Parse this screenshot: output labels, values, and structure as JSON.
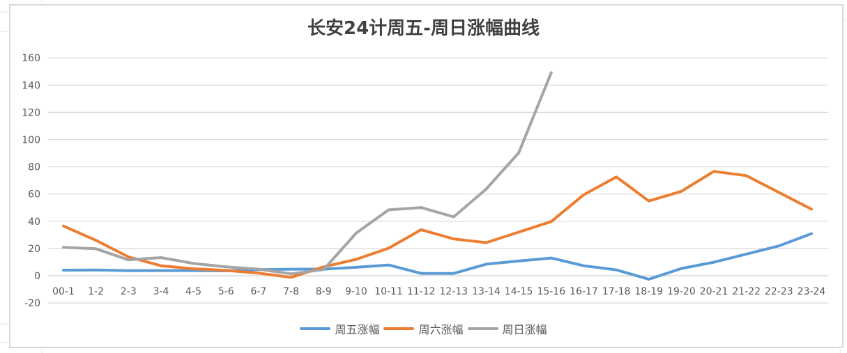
{
  "chart_data": {
    "type": "line",
    "title": "长安24计周五-周日涨幅曲线",
    "xlabel": "",
    "ylabel": "",
    "ylim": [
      -20,
      160
    ],
    "yticks": [
      -20,
      0,
      20,
      40,
      60,
      80,
      100,
      120,
      140,
      160
    ],
    "grid": true,
    "legend_position": "bottom",
    "categories": [
      "00-1",
      "1-2",
      "2-3",
      "3-4",
      "4-5",
      "5-6",
      "6-7",
      "7-8",
      "8-9",
      "9-10",
      "10-11",
      "11-12",
      "12-13",
      "13-14",
      "14-15",
      "15-16",
      "16-17",
      "17-18",
      "18-19",
      "19-20",
      "20-21",
      "21-22",
      "22-23",
      "23-24"
    ],
    "series": [
      {
        "name": "周五涨幅",
        "color": "#5b9bd5",
        "values": [
          4.1,
          4.2,
          3.7,
          3.8,
          3.8,
          3.6,
          4.5,
          4.8,
          4.8,
          6.2,
          7.9,
          1.7,
          1.7,
          8.5,
          10.8,
          13.0,
          7.3,
          4.3,
          -2.6,
          5.3,
          9.9,
          15.9,
          21.9,
          30.9
        ]
      },
      {
        "name": "周六涨幅",
        "color": "#ed7d31",
        "values": [
          36.5,
          26.0,
          13.8,
          7.3,
          5.1,
          3.9,
          1.9,
          -1.2,
          6.5,
          12.0,
          20.2,
          33.8,
          27.0,
          24.3,
          32.0,
          39.8,
          59.5,
          72.6,
          54.9,
          62.0,
          76.6,
          73.5,
          61.2,
          48.9
        ]
      },
      {
        "name": "周日涨幅",
        "color": "#a5a5a5",
        "values": [
          20.8,
          19.8,
          11.6,
          13.3,
          9.0,
          6.5,
          4.8,
          1.4,
          4.5,
          31.3,
          48.4,
          50.1,
          43.2,
          63.7,
          90.3,
          149.2,
          null,
          null,
          null,
          null,
          null,
          null,
          null,
          null
        ]
      }
    ]
  }
}
